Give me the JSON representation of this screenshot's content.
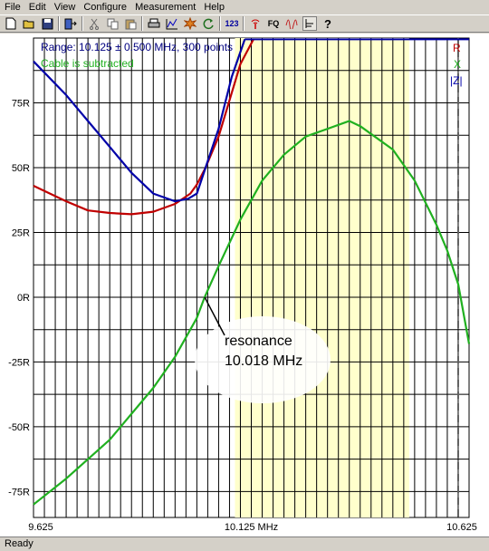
{
  "menu": [
    "File",
    "Edit",
    "View",
    "Configure",
    "Measurement",
    "Help"
  ],
  "toolbar": {
    "icons": [
      "new-file-icon",
      "open-folder-icon",
      "save-icon",
      "export-icon",
      "cut-icon",
      "copy-icon",
      "paste-icon",
      "print-icon",
      "chart-icon",
      "star-burst-icon",
      "refresh-icon",
      "numbers-icon",
      "antenna-icon",
      "fq-icon",
      "waveform-icon",
      "select-icon",
      "help-icon"
    ],
    "numbers_label": "123",
    "fq_label": "FQ",
    "help_label": "?"
  },
  "chart_data": {
    "type": "line",
    "info_line1": "Range: 10.125 ± 0.500 MHz, 300 points",
    "info_line2": "Cable is subtracted",
    "xlim": [
      9.625,
      10.625
    ],
    "ylim": [
      -85,
      100
    ],
    "x_tick_labels": [
      "9.625",
      "10.125 MHz",
      "10.625"
    ],
    "y_ticks": [
      75,
      50,
      25,
      0,
      -25,
      -50,
      -75
    ],
    "y_tick_labels": [
      "75R",
      "50R",
      "25R",
      "0R",
      "-25R",
      "-50R",
      "-75R"
    ],
    "legend": [
      "R",
      "X",
      "|Z|"
    ],
    "colors": {
      "R": "#c00000",
      "X": "#20b020",
      "Z": "#0000a8",
      "info1": "#000080",
      "info2": "#20b020",
      "band": "#ffffcc",
      "marker": "#606060"
    },
    "grid": true,
    "highlight_band": [
      10.0875,
      10.4875
    ],
    "marker_dashed_x": 10.6,
    "annotation": {
      "line1": "resonance",
      "line2": "10.018 MHz",
      "x": 10.018,
      "y": 0
    },
    "series": [
      {
        "name": "R",
        "x": [
          9.625,
          9.7,
          9.75,
          9.8,
          9.85,
          9.9,
          9.95,
          9.985,
          10.0,
          10.02,
          10.05,
          10.1,
          10.13
        ],
        "y": [
          43,
          37,
          33.5,
          32.5,
          32,
          33,
          36,
          40,
          43.5,
          50,
          62,
          90,
          100
        ]
      },
      {
        "name": "X",
        "x": [
          9.625,
          9.7,
          9.8,
          9.9,
          9.95,
          10.0,
          10.018,
          10.05,
          10.1,
          10.15,
          10.2,
          10.25,
          10.3,
          10.35,
          10.375,
          10.4,
          10.45,
          10.5,
          10.55,
          10.575,
          10.6,
          10.625
        ],
        "y": [
          -80,
          -70,
          -55,
          -35,
          -23,
          -8,
          0,
          12,
          30,
          45,
          55,
          62,
          65,
          68,
          66,
          63,
          57,
          45,
          28,
          18,
          5,
          -18
        ]
      },
      {
        "name": "|Z|",
        "x": [
          9.625,
          9.7,
          9.75,
          9.8,
          9.85,
          9.9,
          9.95,
          9.98,
          10.0,
          10.02,
          10.05,
          10.08,
          10.11
        ],
        "y": [
          91,
          78,
          68,
          58,
          48,
          40,
          37,
          38,
          40,
          50,
          65,
          85,
          100
        ]
      }
    ]
  },
  "status": "Ready"
}
